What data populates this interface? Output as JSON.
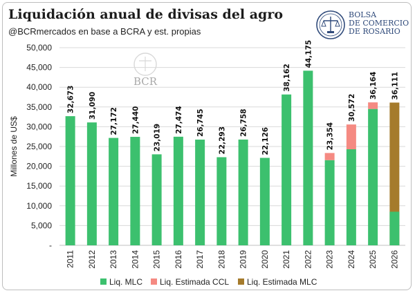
{
  "header": {
    "title": "Liquidación anual de divisas del agro",
    "subtitle": "@BCRmercados en base a BCRA y est. propias"
  },
  "logo": {
    "lines": [
      "BOLSA",
      "DE COMERCIO",
      "DE ROSARIO"
    ]
  },
  "watermark": {
    "text": "BCR"
  },
  "colors": {
    "mlc": "#3cc06e",
    "ccl": "#f58a82",
    "mlc_est": "#a57b2c"
  },
  "chart_data": {
    "type": "bar",
    "stacked": true,
    "categories": [
      "2011",
      "2012",
      "2013",
      "2014",
      "2015",
      "2016",
      "2017",
      "2018",
      "2019",
      "2020",
      "2021",
      "2022",
      "2023",
      "2024",
      "2025",
      "2026"
    ],
    "series": [
      {
        "name": "Liq. MLC",
        "values": [
          32673,
          31090,
          27172,
          27440,
          23019,
          27474,
          26745,
          22293,
          26758,
          22126,
          38162,
          44175,
          21550,
          24300,
          34500,
          0
        ]
      },
      {
        "name": "Liq. Estimada CCL",
        "values": [
          0,
          0,
          0,
          0,
          0,
          0,
          0,
          0,
          0,
          0,
          0,
          0,
          1804,
          6272,
          1664,
          0
        ]
      },
      {
        "name": "Liq. Estimada MLC",
        "values": [
          0,
          0,
          0,
          0,
          0,
          0,
          0,
          0,
          0,
          0,
          0,
          0,
          0,
          0,
          0,
          36111
        ]
      }
    ],
    "overlay": {
      "category": "2026",
      "series": "Liq. MLC",
      "value": 8500
    },
    "total_labels": [
      "32,673",
      "31,090",
      "27,172",
      "27,440",
      "23,019",
      "27,474",
      "26,745",
      "22,293",
      "26,758",
      "22,126",
      "38,162",
      "44,175",
      "23,354",
      "30,572",
      "36,164",
      "36,111"
    ],
    "totals": [
      32673,
      31090,
      27172,
      27440,
      23019,
      27474,
      26745,
      22293,
      26758,
      22126,
      38162,
      44175,
      23354,
      30572,
      36164,
      36111
    ],
    "ylabel": "Millones de US$",
    "ylim": [
      0,
      50000
    ],
    "yticks": [
      0,
      5000,
      10000,
      15000,
      20000,
      25000,
      30000,
      35000,
      40000,
      45000,
      50000
    ],
    "ytick_labels": [
      "-",
      "5,000",
      "10,000",
      "15,000",
      "20,000",
      "25,000",
      "30,000",
      "35,000",
      "40,000",
      "45,000",
      "50,000"
    ],
    "grid": true,
    "legend_position": "bottom",
    "legend": [
      "Liq. MLC",
      "Liq. Estimada CCL",
      "Liq. Estimada MLC"
    ]
  }
}
